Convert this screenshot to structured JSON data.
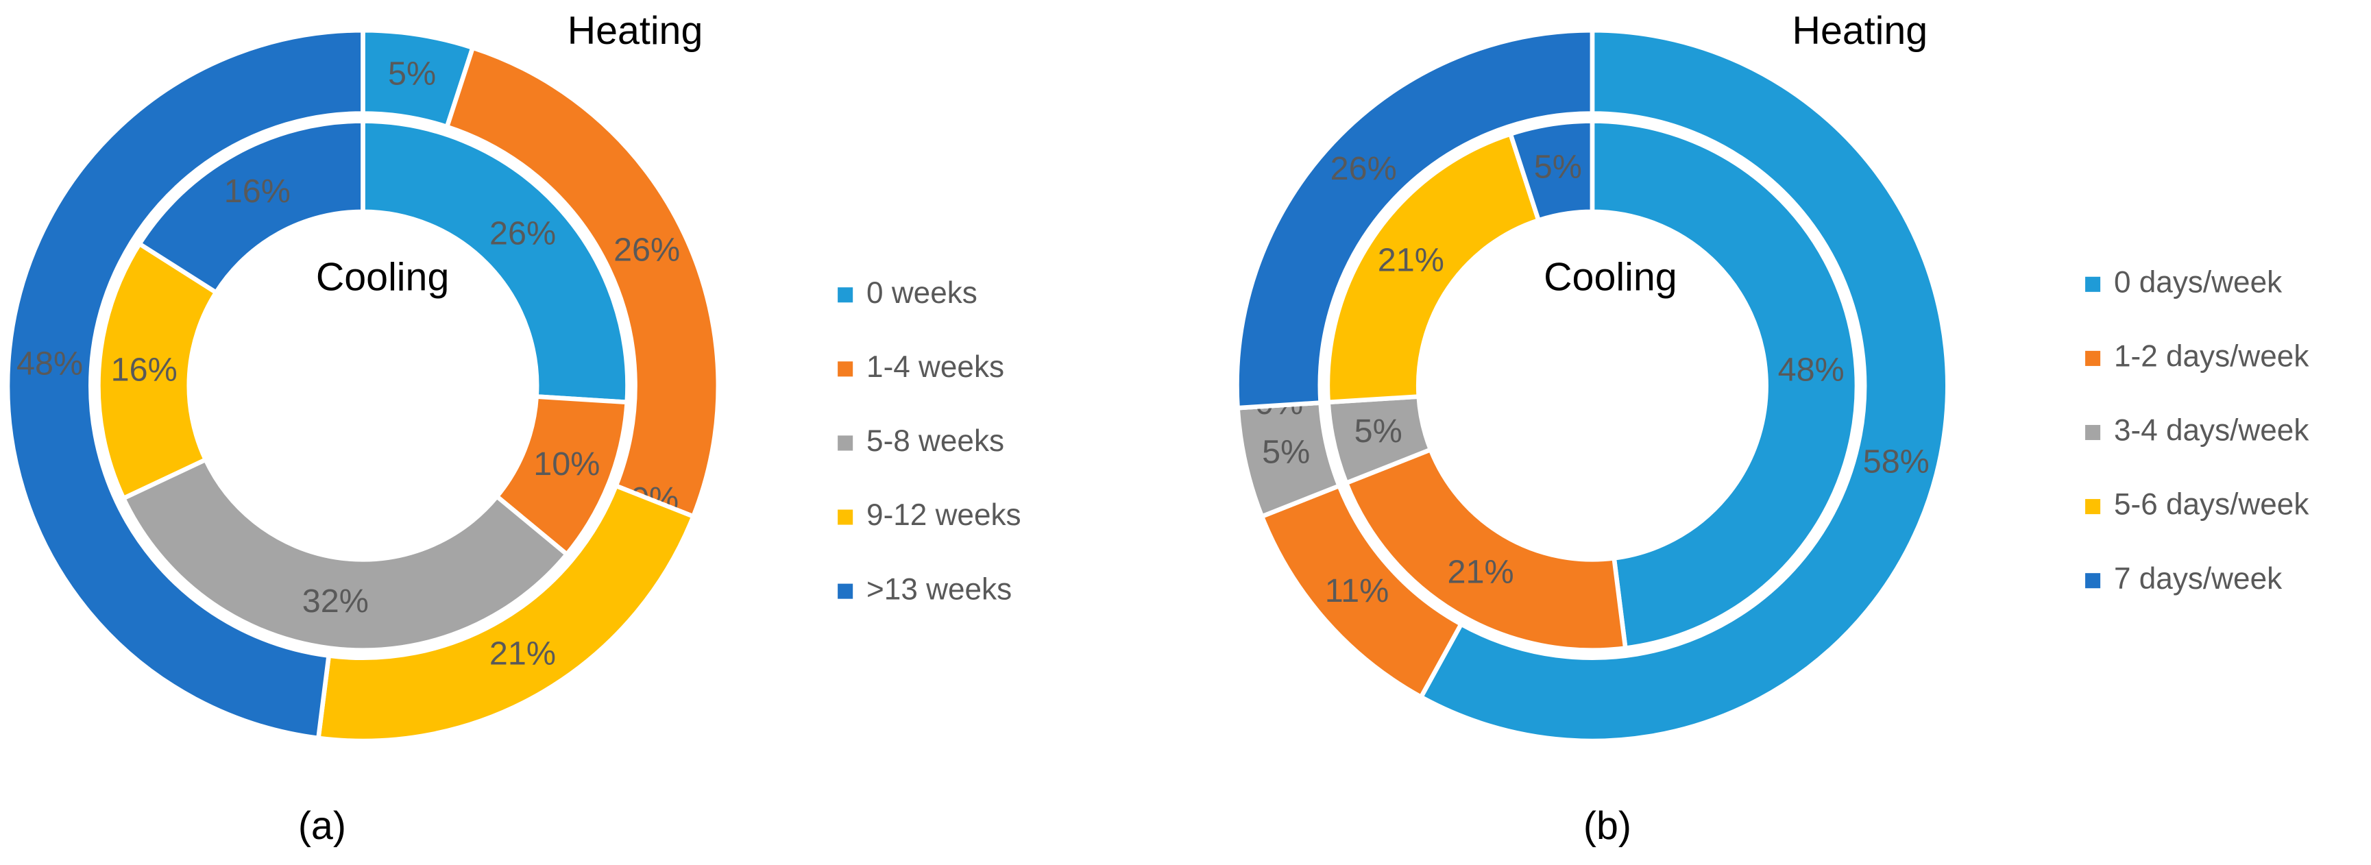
{
  "chart_data": [
    {
      "type": "donut",
      "caption": "(a)",
      "categories": [
        "0 weeks",
        "1-4 weeks",
        "5-8 weeks",
        "9-12 weeks",
        ">13 weeks"
      ],
      "colors": [
        "#1f9bd7",
        "#f47d20",
        "#a5a5a5",
        "#ffc000",
        "#1f72c6"
      ],
      "series": [
        {
          "name": "Heating",
          "values": [
            5,
            26,
            0,
            21,
            48
          ],
          "value_labels": [
            "5%",
            "26%",
            "0%",
            "21%",
            "48%"
          ]
        },
        {
          "name": "Cooling",
          "values": [
            26,
            10,
            32,
            16,
            16
          ],
          "value_labels": [
            "26%",
            "10%",
            "32%",
            "16%",
            "16%"
          ]
        }
      ]
    },
    {
      "type": "donut",
      "caption": "(b)",
      "categories": [
        "0 days/week",
        "1-2 days/week",
        "3-4 days/week",
        "5-6 days/week",
        "7 days/week"
      ],
      "colors": [
        "#1f9bd7",
        "#f47d20",
        "#a5a5a5",
        "#ffc000",
        "#1f72c6"
      ],
      "series": [
        {
          "name": "Heating",
          "values": [
            58,
            11,
            5,
            0,
            26
          ],
          "value_labels": [
            "58%",
            "11%",
            "5%",
            "0%",
            "26%"
          ]
        },
        {
          "name": "Cooling",
          "values": [
            48,
            21,
            5,
            21,
            5
          ],
          "value_labels": [
            "48%",
            "21%",
            "5%",
            "21%",
            "5%"
          ]
        }
      ]
    }
  ]
}
